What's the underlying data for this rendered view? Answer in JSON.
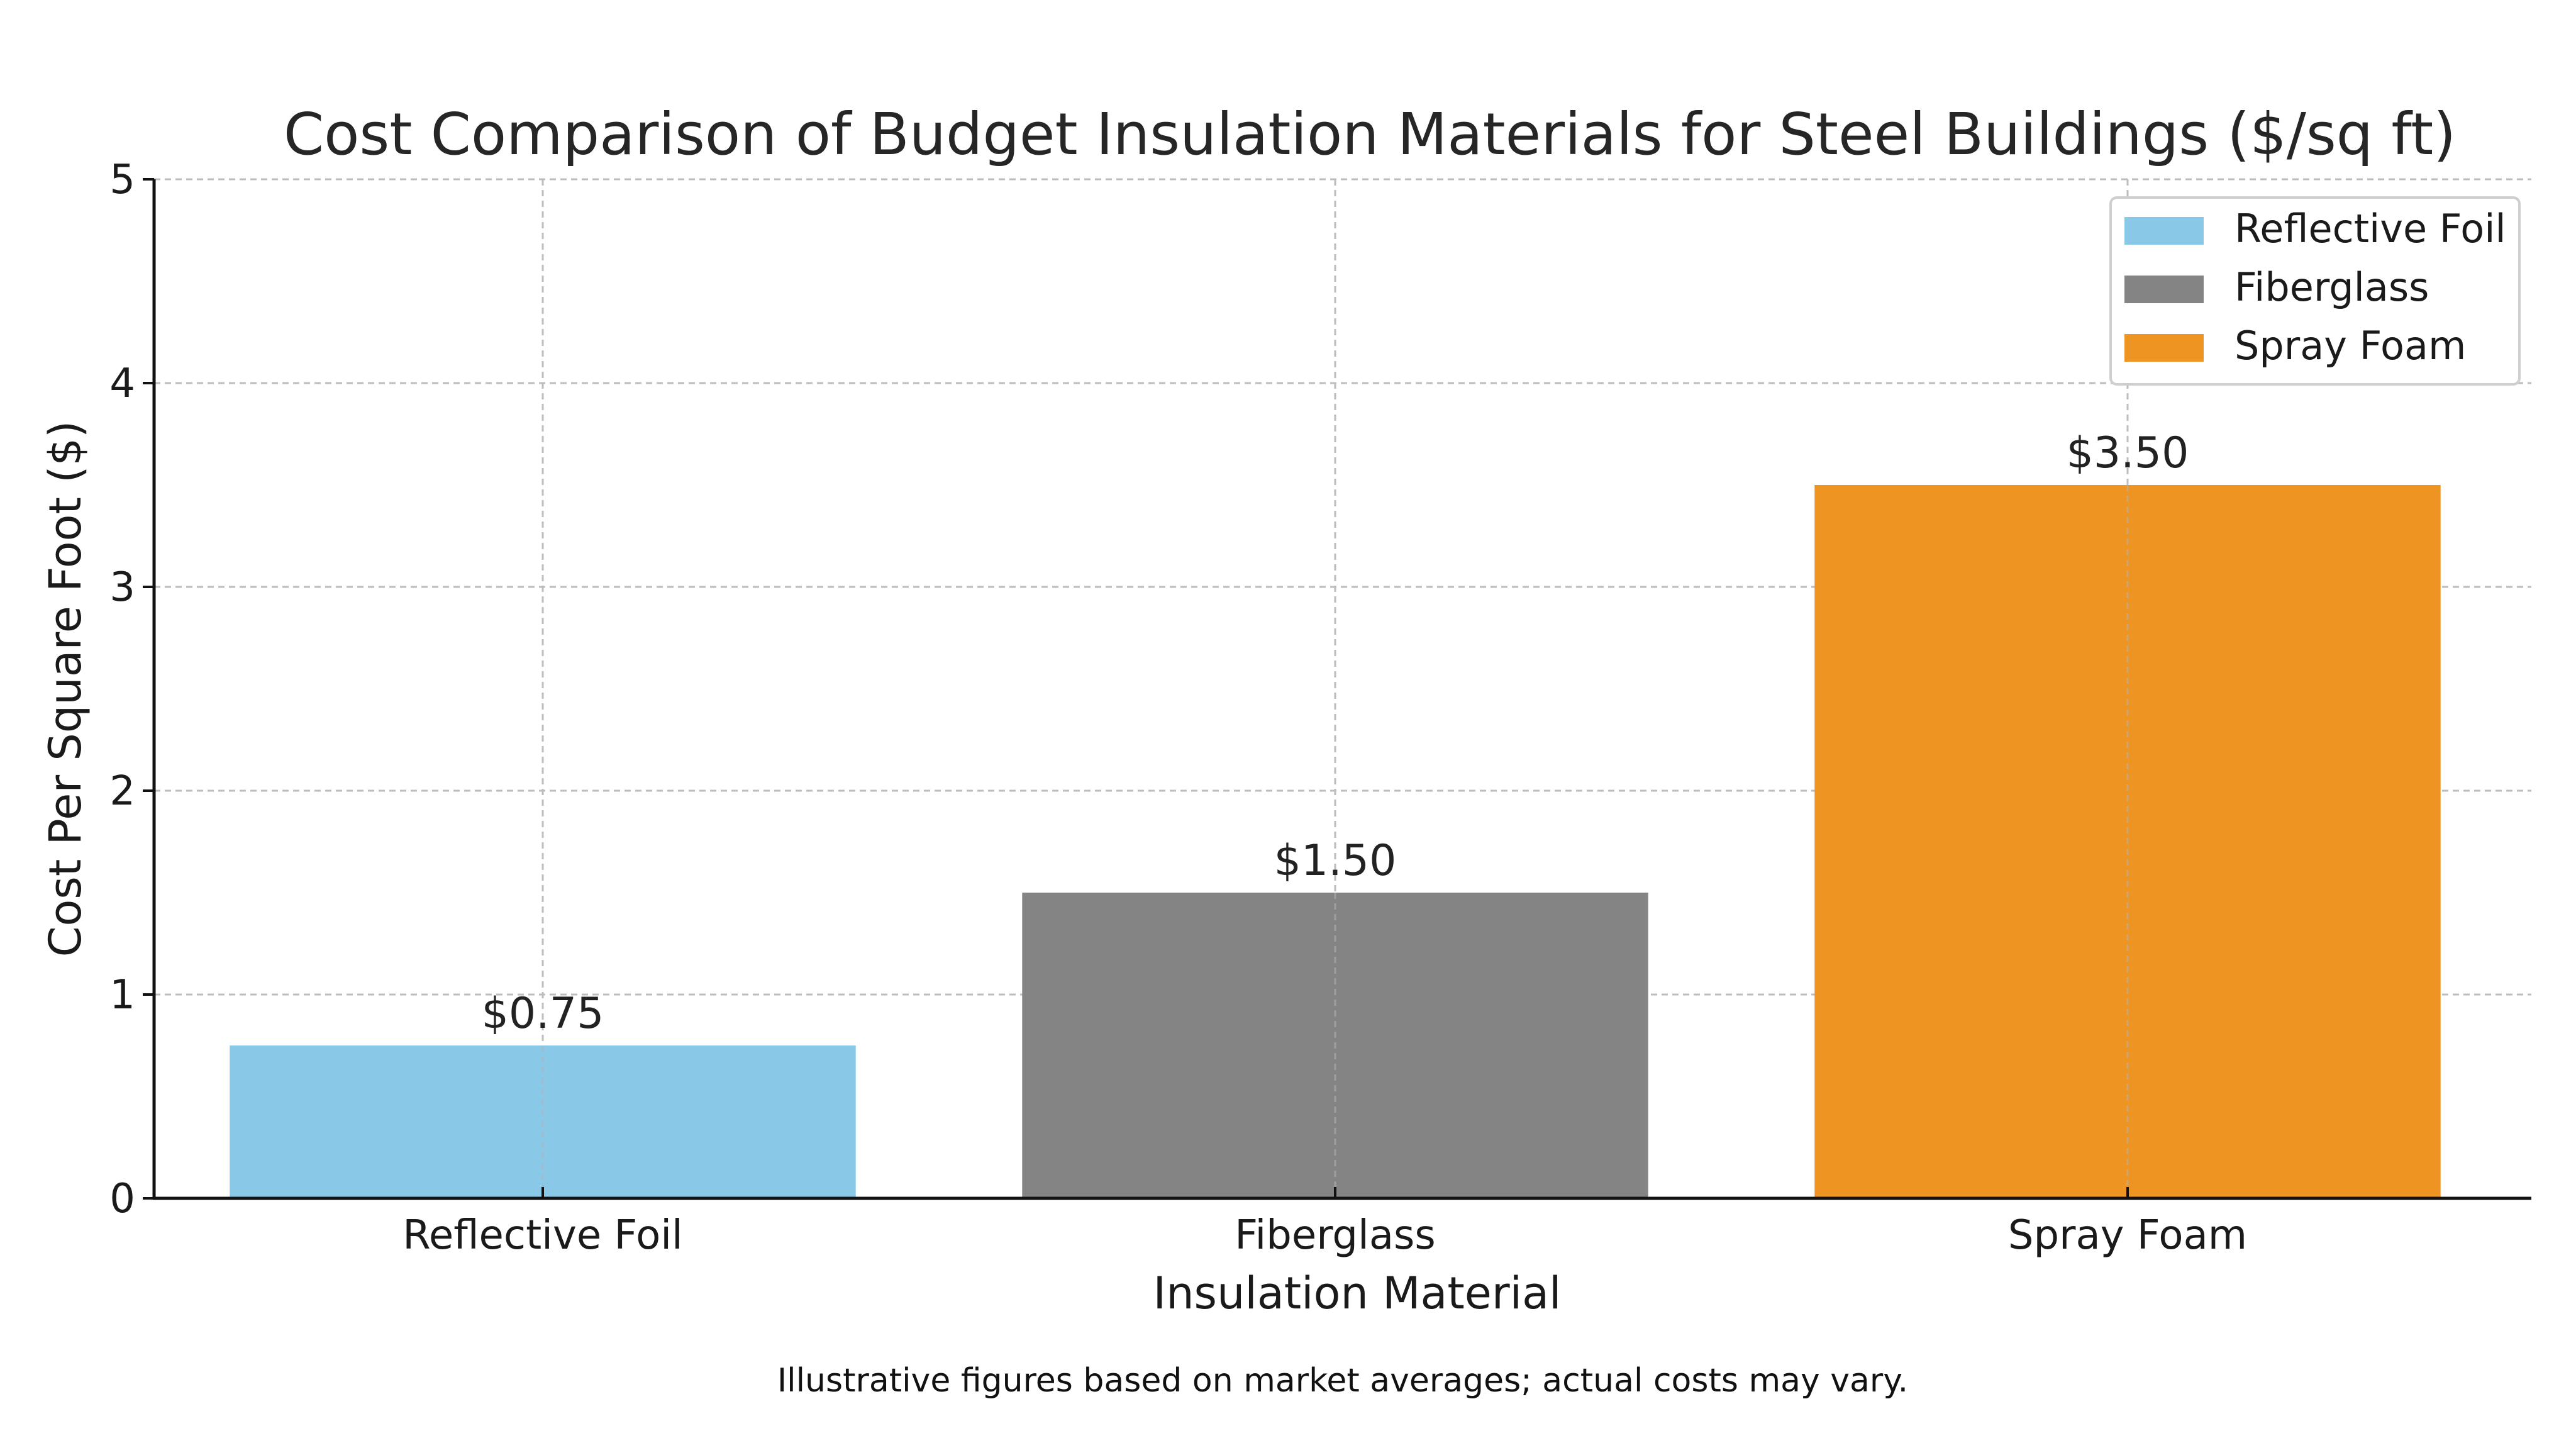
{
  "chart_data": {
    "type": "bar",
    "title": "Cost Comparison of Budget Insulation Materials for Steel Buildings ($/sq ft)",
    "xlabel": "Insulation Material",
    "ylabel": "Cost Per Square Foot ($)",
    "categories": [
      "Reflective Foil",
      "Fiberglass",
      "Spray Foam"
    ],
    "values": [
      0.75,
      1.5,
      3.5
    ],
    "data_labels": [
      "$0.75",
      "$1.50",
      "$3.50"
    ],
    "colors": [
      "#89c8e6",
      "#848484",
      "#ee9423"
    ],
    "ylim": [
      0,
      5
    ],
    "yticks": [
      0,
      1,
      2,
      3,
      4,
      5
    ],
    "grid": true,
    "legend": {
      "placement": "top-right",
      "entries": [
        "Reflective Foil",
        "Fiberglass",
        "Spray Foam"
      ]
    },
    "footnote": "Illustrative figures based on market averages; actual costs may vary."
  }
}
